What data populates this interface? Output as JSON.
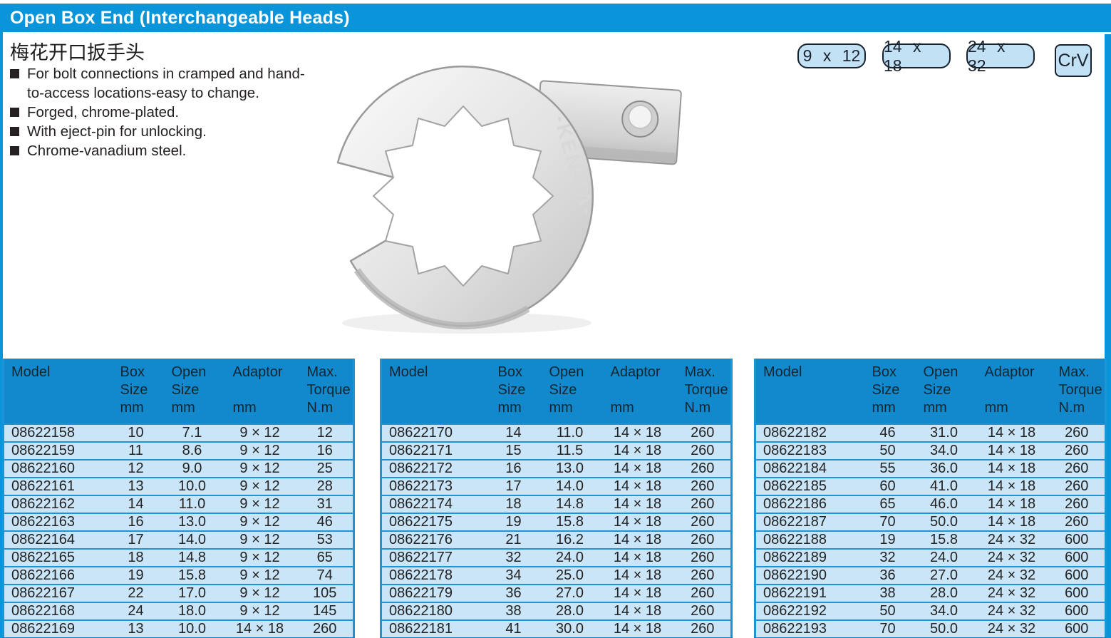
{
  "header": {
    "title": "Open Box End (Interchangeable Heads)"
  },
  "subtitle_cn": "梅花开口扳手头",
  "features": [
    "For bolt connections in cramped and hand-\nto-access locations-easy to change.",
    "Forged, chrome-plated.",
    "With eject-pin for unlocking.",
    "Chrome-vanadium steel."
  ],
  "size_badges": [
    "9 x 12",
    "14 x 18",
    "24 x 32"
  ],
  "material_badge": "CrV",
  "brand_text": "-KEN-TA-",
  "colors": {
    "accent": "#0a94da",
    "table_header": "#1289cd",
    "row_bg": "#c9e5f7",
    "row_line": "#1d94d5",
    "row_line_dark": "#0f80c6",
    "badge_bg": "#c2e1f4",
    "badge_border": "#18222e",
    "text": "#231f20"
  },
  "table_headers": [
    {
      "lines": [
        "Model",
        "",
        ""
      ]
    },
    {
      "lines": [
        "Box",
        "Size",
        "mm"
      ]
    },
    {
      "lines": [
        "Open",
        "Size",
        "mm"
      ]
    },
    {
      "lines": [
        "Adaptor",
        "",
        "mm"
      ]
    },
    {
      "lines": [
        "Max.",
        "Torque",
        "N.m"
      ]
    }
  ],
  "tables": [
    {
      "rows": [
        [
          "08622158",
          "10",
          "7.1",
          "9 × 12",
          "12"
        ],
        [
          "08622159",
          "11",
          "8.6",
          "9 × 12",
          "16"
        ],
        [
          "08622160",
          "12",
          "9.0",
          "9 × 12",
          "25"
        ],
        [
          "08622161",
          "13",
          "10.0",
          "9 × 12",
          "28"
        ],
        [
          "08622162",
          "14",
          "11.0",
          "9 × 12",
          "31"
        ],
        [
          "08622163",
          "16",
          "13.0",
          "9 × 12",
          "46"
        ],
        [
          "08622164",
          "17",
          "14.0",
          "9 × 12",
          "53"
        ],
        [
          "08622165",
          "18",
          "14.8",
          "9 × 12",
          "65"
        ],
        [
          "08622166",
          "19",
          "15.8",
          "9 × 12",
          "74"
        ],
        [
          "08622167",
          "22",
          "17.0",
          "9 × 12",
          "105"
        ],
        [
          "08622168",
          "24",
          "18.0",
          "9 × 12",
          "145"
        ],
        [
          "08622169",
          "13",
          "10.0",
          "14 × 18",
          "260"
        ]
      ]
    },
    {
      "rows": [
        [
          "08622170",
          "14",
          "11.0",
          "14 × 18",
          "260"
        ],
        [
          "08622171",
          "15",
          "11.5",
          "14 × 18",
          "260"
        ],
        [
          "08622172",
          "16",
          "13.0",
          "14 × 18",
          "260"
        ],
        [
          "08622173",
          "17",
          "14.0",
          "14 × 18",
          "260"
        ],
        [
          "08622174",
          "18",
          "14.8",
          "14 × 18",
          "260"
        ],
        [
          "08622175",
          "19",
          "15.8",
          "14 × 18",
          "260"
        ],
        [
          "08622176",
          "21",
          "16.2",
          "14 × 18",
          "260"
        ],
        [
          "08622177",
          "32",
          "24.0",
          "14 × 18",
          "260"
        ],
        [
          "08622178",
          "34",
          "25.0",
          "14 × 18",
          "260"
        ],
        [
          "08622179",
          "36",
          "27.0",
          "14 × 18",
          "260"
        ],
        [
          "08622180",
          "38",
          "28.0",
          "14 × 18",
          "260"
        ],
        [
          "08622181",
          "41",
          "30.0",
          "14 × 18",
          "260"
        ]
      ]
    },
    {
      "rows": [
        [
          "08622182",
          "46",
          "31.0",
          "14 × 18",
          "260"
        ],
        [
          "08622183",
          "50",
          "34.0",
          "14 × 18",
          "260"
        ],
        [
          "08622184",
          "55",
          "36.0",
          "14 × 18",
          "260"
        ],
        [
          "08622185",
          "60",
          "41.0",
          "14 × 18",
          "260"
        ],
        [
          "08622186",
          "65",
          "46.0",
          "14 × 18",
          "260"
        ],
        [
          "08622187",
          "70",
          "50.0",
          "14 × 18",
          "260"
        ],
        [
          "08622188",
          "19",
          "15.8",
          "24 × 32",
          "600"
        ],
        [
          "08622189",
          "32",
          "24.0",
          "24 × 32",
          "600"
        ],
        [
          "08622190",
          "36",
          "27.0",
          "24 × 32",
          "600"
        ],
        [
          "08622191",
          "38",
          "28.0",
          "24 × 32",
          "600"
        ],
        [
          "08622192",
          "50",
          "34.0",
          "24 × 32",
          "600"
        ],
        [
          "08622193",
          "70",
          "50.0",
          "24 × 32",
          "600"
        ]
      ]
    }
  ]
}
